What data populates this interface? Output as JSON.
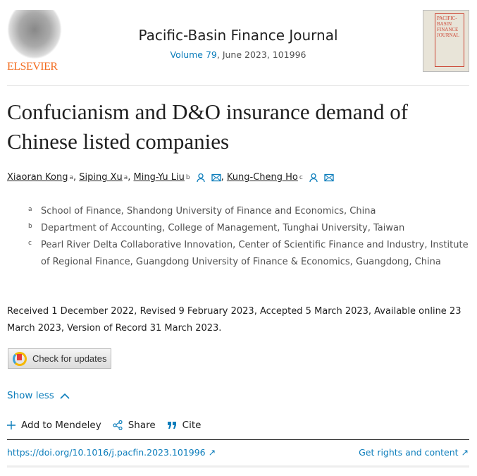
{
  "header": {
    "publisher_logo_text": "ELSEVIER",
    "journal_title": "Pacific-Basin Finance Journal",
    "volume_link": "Volume 79",
    "volume_rest": ", June 2023, 101996",
    "cover_text": "PACIFIC-BASIN FINANCE JOURNAL"
  },
  "article": {
    "title": "Confucianism and D&O insurance demand of Chinese listed companies",
    "authors": [
      {
        "name": "Xiaoran Kong",
        "sup": "a"
      },
      {
        "name": "Siping Xu",
        "sup": "a"
      },
      {
        "name": "Ming-Yu Liu",
        "sup": "b"
      },
      {
        "name": "Kung-Cheng Ho",
        "sup": "c"
      }
    ],
    "affiliations": [
      {
        "label": "a",
        "text": "School of Finance, Shandong University of Finance and Economics, China"
      },
      {
        "label": "b",
        "text": "Department of Accounting, College of Management, Tunghai University, Taiwan"
      },
      {
        "label": "c",
        "text": "Pearl River Delta Collaborative Innovation, Center of Scientific Finance and Industry, Institute of Regional Finance, Guangdong University of Finance & Economics, Guangdong, China"
      }
    ],
    "dates": "Received 1 December 2022, Revised 9 February 2023, Accepted 5 March 2023, Available online 23 March 2023, Version of Record 31 March 2023."
  },
  "buttons": {
    "check_updates": "Check for updates",
    "show_less": "Show less",
    "add_mendeley": "Add to Mendeley",
    "share": "Share",
    "cite": "Cite"
  },
  "links": {
    "doi": "https://doi.org/10.1016/j.pacfin.2023.101996",
    "rights": "Get rights and content"
  },
  "colors": {
    "link": "#0c7dbb",
    "brand": "#f36d21",
    "text": "#1f1f1f"
  }
}
